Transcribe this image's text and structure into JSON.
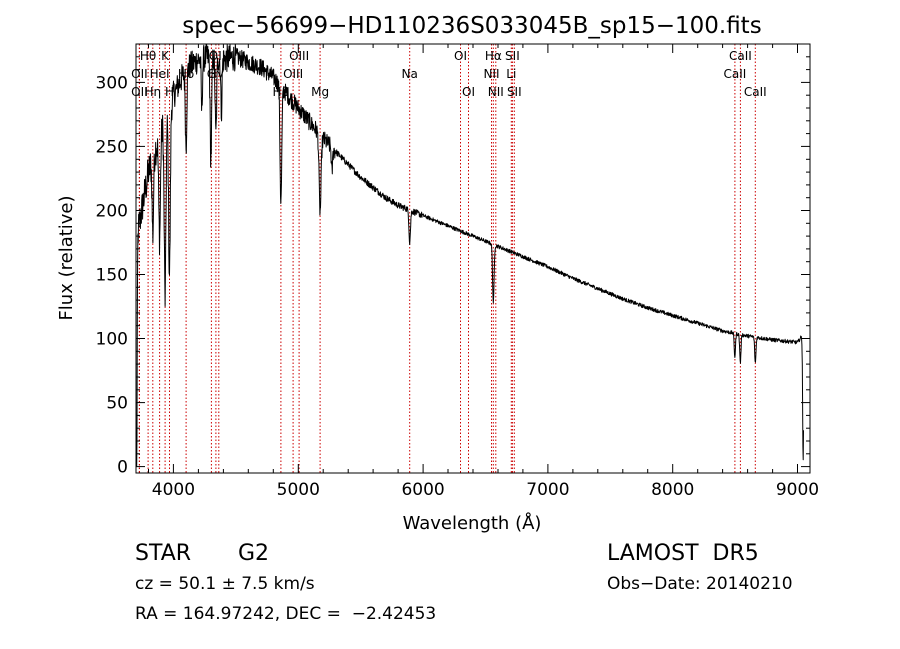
{
  "chart_data": {
    "type": "line",
    "title": "spec−56699−HD110236S033045B_sp15−100.fits",
    "xlabel": "Wavelength (Å)",
    "ylabel": "Flux (relative)",
    "xlim": [
      3700,
      9100
    ],
    "ylim": [
      -5,
      330
    ],
    "xticks": [
      4000,
      5000,
      6000,
      7000,
      8000,
      9000
    ],
    "yticks": [
      0,
      50,
      100,
      150,
      200,
      250,
      300
    ],
    "x_minor_step": 200,
    "y_minor_step": 10,
    "line_color": "#000000",
    "marker_color": "#cc0000",
    "continuum": {
      "x": [
        3700,
        3800,
        3900,
        4000,
        4100,
        4200,
        4300,
        4400,
        4500,
        4600,
        4700,
        4800,
        4900,
        5000,
        5100,
        5200,
        5300,
        5400,
        5500,
        5600,
        5700,
        5800,
        5900,
        6000,
        6200,
        6400,
        6600,
        6800,
        7000,
        7200,
        7400,
        7600,
        7800,
        8000,
        8200,
        8400,
        8600,
        8800,
        9000,
        9050
      ],
      "y": [
        175,
        230,
        262,
        290,
        310,
        318,
        320,
        318,
        320,
        316,
        312,
        304,
        292,
        280,
        268,
        256,
        246,
        236,
        226,
        218,
        210,
        204,
        200,
        196,
        188,
        180,
        172,
        164,
        156,
        147,
        139,
        131,
        124,
        118,
        112,
        106,
        102,
        99,
        97,
        104
      ]
    },
    "absorption_lines": [
      {
        "x": 3705,
        "depth": 210,
        "width": 4
      },
      {
        "x": 3835,
        "depth": 60,
        "width": 6
      },
      {
        "x": 3889,
        "depth": 80,
        "width": 7
      },
      {
        "x": 3933,
        "depth": 140,
        "width": 7
      },
      {
        "x": 3968,
        "depth": 130,
        "width": 7
      },
      {
        "x": 4101,
        "depth": 60,
        "width": 6
      },
      {
        "x": 4227,
        "depth": 40,
        "width": 5
      },
      {
        "x": 4300,
        "depth": 80,
        "width": 6
      },
      {
        "x": 4340,
        "depth": 60,
        "width": 6
      },
      {
        "x": 4384,
        "depth": 40,
        "width": 5
      },
      {
        "x": 4861,
        "depth": 90,
        "width": 7
      },
      {
        "x": 5175,
        "depth": 60,
        "width": 8
      },
      {
        "x": 5270,
        "depth": 20,
        "width": 5
      },
      {
        "x": 5893,
        "depth": 25,
        "width": 6
      },
      {
        "x": 6563,
        "depth": 45,
        "width": 6
      },
      {
        "x": 8498,
        "depth": 18,
        "width": 5
      },
      {
        "x": 8542,
        "depth": 22,
        "width": 5
      },
      {
        "x": 8662,
        "depth": 20,
        "width": 5
      },
      {
        "x": 9045,
        "depth": 100,
        "width": 4
      }
    ],
    "line_markers": [
      {
        "x": 3797,
        "label": "Hθ",
        "row": 0
      },
      {
        "x": 3727,
        "label": "OII",
        "row": 1
      },
      {
        "x": 3727,
        "label": "OII",
        "row": 2
      },
      {
        "x": 3835,
        "label": "Hη",
        "row": 2
      },
      {
        "x": 3889,
        "label": "HeI",
        "row": 1
      },
      {
        "x": 3933,
        "label": "K",
        "row": 0
      },
      {
        "x": 3968,
        "label": "H",
        "row": 2
      },
      {
        "x": 4101,
        "label": "Hδ",
        "row": 1
      },
      {
        "x": 4304,
        "label": "G",
        "row": 1
      },
      {
        "x": 4340,
        "label": "Hγ",
        "row": 1
      },
      {
        "x": 4363,
        "label": "OIII",
        "row": 0
      },
      {
        "x": 4861,
        "label": "Hβ",
        "row": 2
      },
      {
        "x": 4959,
        "label": "OIII",
        "row": 1
      },
      {
        "x": 5007,
        "label": "OIII",
        "row": 0
      },
      {
        "x": 5175,
        "label": "Mg",
        "row": 2
      },
      {
        "x": 5893,
        "label": "Na",
        "row": 1
      },
      {
        "x": 6300,
        "label": "OI",
        "row": 0
      },
      {
        "x": 6364,
        "label": "OI",
        "row": 2
      },
      {
        "x": 6548,
        "label": "NII",
        "row": 1
      },
      {
        "x": 6563,
        "label": "Hα",
        "row": 0
      },
      {
        "x": 6583,
        "label": "NII",
        "row": 2
      },
      {
        "x": 6707,
        "label": "Li",
        "row": 1
      },
      {
        "x": 6716,
        "label": "SII",
        "row": 0
      },
      {
        "x": 6731,
        "label": "SII",
        "row": 2
      },
      {
        "x": 8498,
        "label": "CaII",
        "row": 1
      },
      {
        "x": 8542,
        "label": "CaII",
        "row": 0
      },
      {
        "x": 8662,
        "label": "CaII",
        "row": 2
      }
    ]
  },
  "info": {
    "class": "STAR",
    "subclass": "G2",
    "survey": "LAMOST  DR5",
    "cz": "cz = 50.1 ± 7.5 km/s",
    "obs_date": "Obs−Date: 20140210",
    "coords": "RA = 164.97242, DEC =  −2.42453"
  }
}
